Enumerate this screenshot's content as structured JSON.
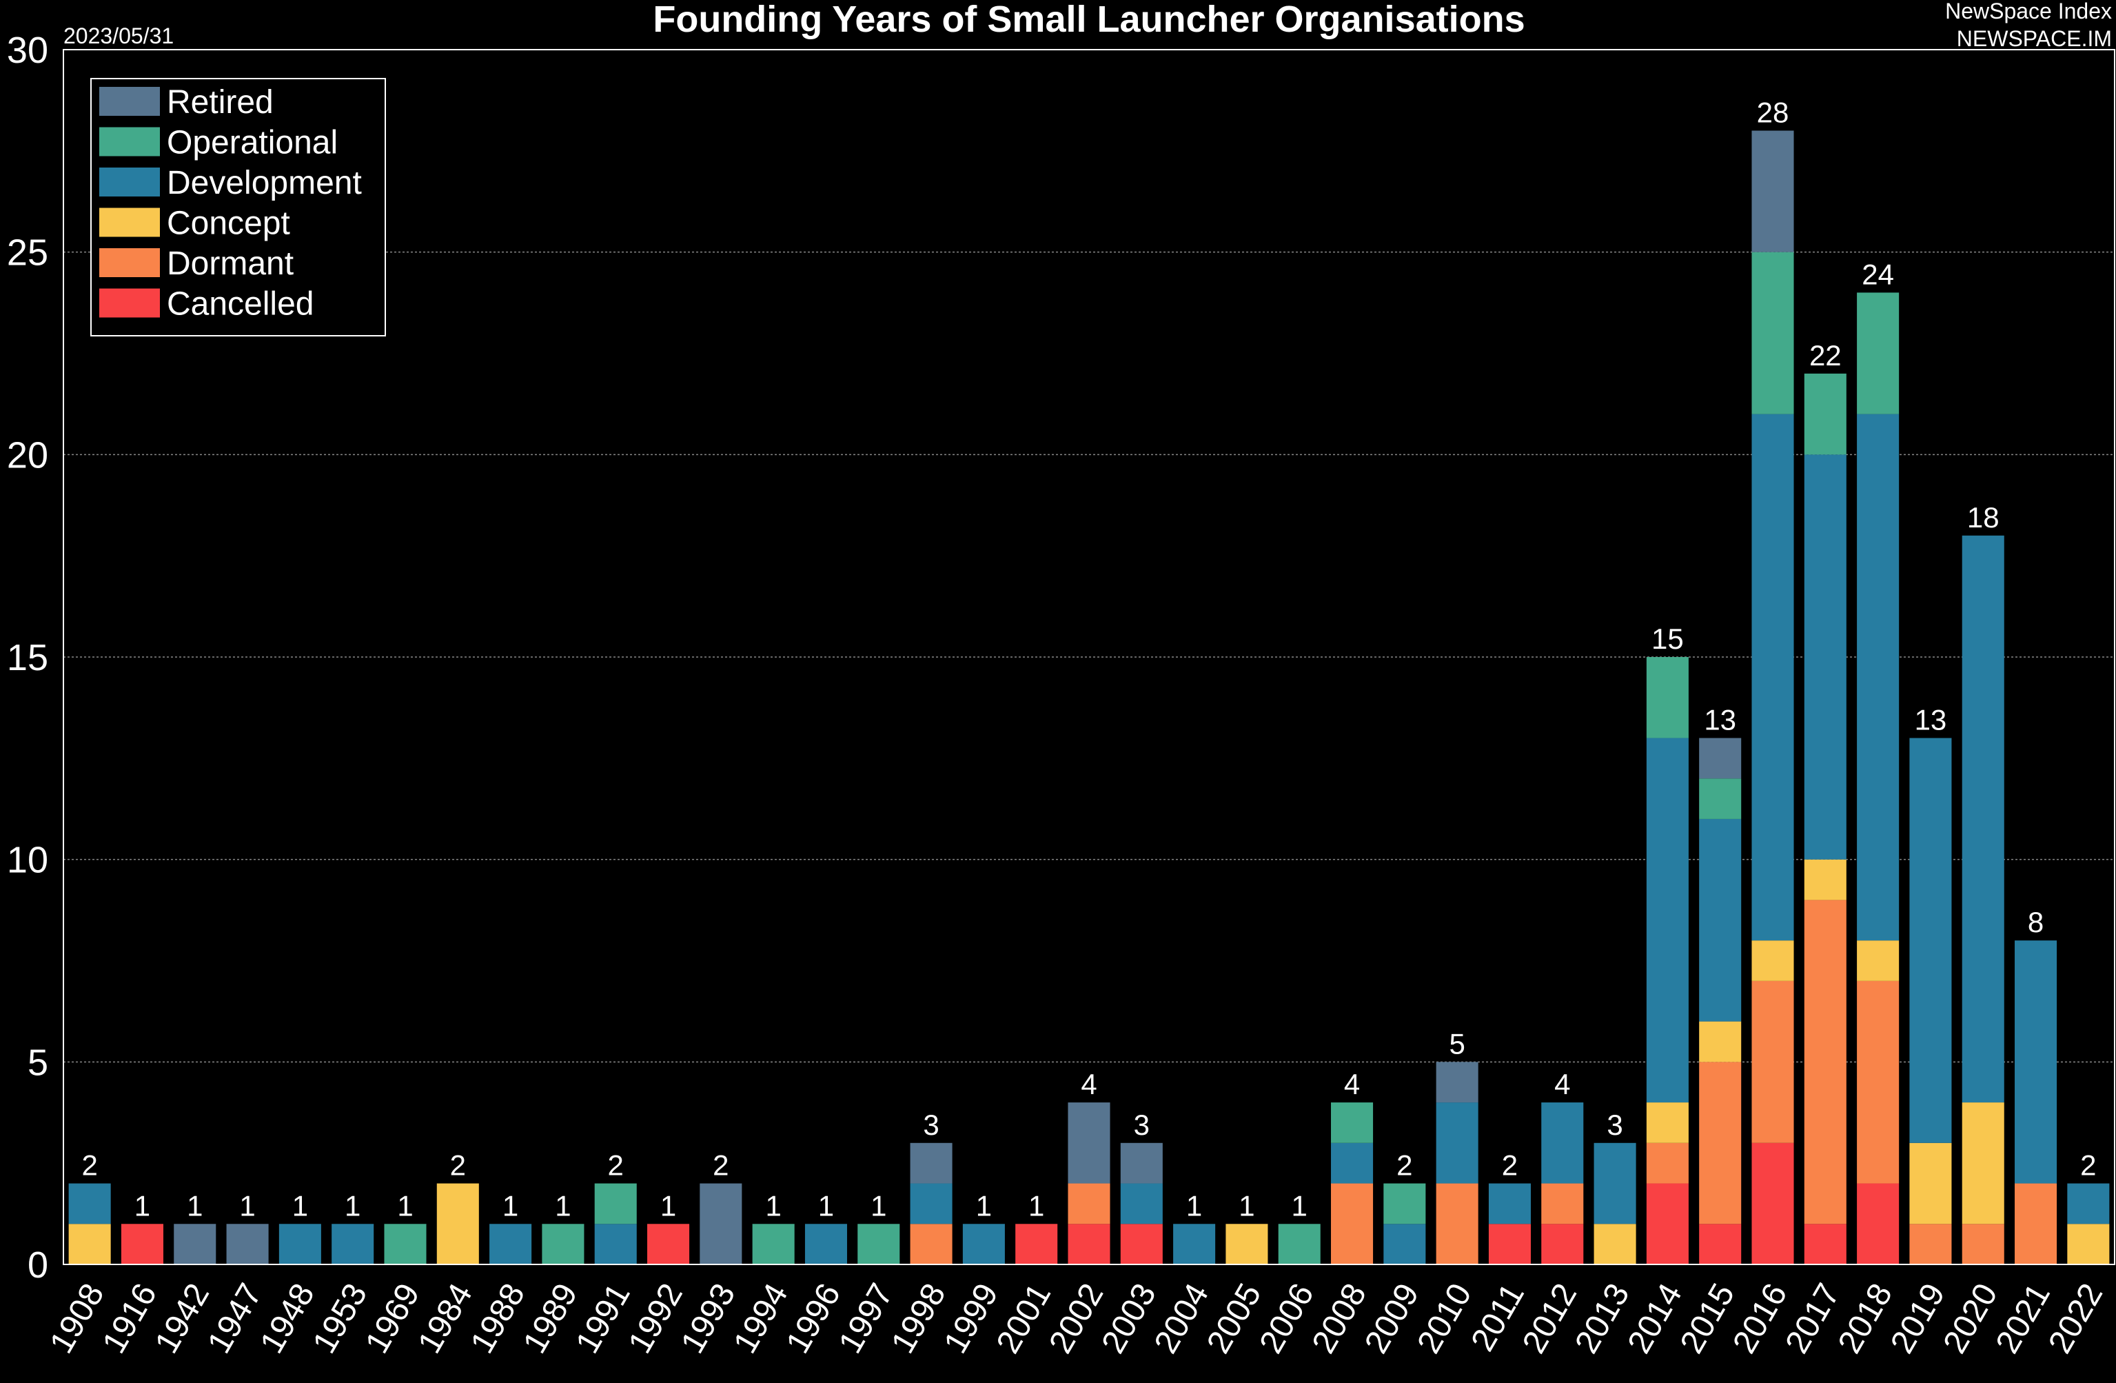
{
  "header": {
    "date": "2023/05/31",
    "brand_line1": "NewSpace Index",
    "brand_line2": "NEWSPACE.IM"
  },
  "chart_data": {
    "type": "bar",
    "stacked": true,
    "title": "Founding Years of Small Launcher Organisations",
    "xlabel": "",
    "ylabel": "",
    "ylim": [
      0,
      30
    ],
    "yticks": [
      0,
      5,
      10,
      15,
      20,
      25,
      30
    ],
    "grid": true,
    "legend_position": "top-left",
    "categories": [
      "1908",
      "1916",
      "1942",
      "1947",
      "1948",
      "1953",
      "1969",
      "1984",
      "1988",
      "1989",
      "1991",
      "1992",
      "1993",
      "1994",
      "1996",
      "1997",
      "1998",
      "1999",
      "2001",
      "2002",
      "2003",
      "2004",
      "2005",
      "2006",
      "2008",
      "2009",
      "2010",
      "2011",
      "2012",
      "2013",
      "2014",
      "2015",
      "2016",
      "2017",
      "2018",
      "2019",
      "2020",
      "2021",
      "2022"
    ],
    "series": [
      {
        "name": "Cancelled",
        "color": "#f94144",
        "values": [
          0,
          1,
          0,
          0,
          0,
          0,
          0,
          0,
          0,
          0,
          0,
          1,
          0,
          0,
          0,
          0,
          0,
          0,
          1,
          1,
          1,
          0,
          0,
          0,
          0,
          0,
          0,
          1,
          1,
          0,
          2,
          1,
          3,
          1,
          2,
          0,
          0,
          0,
          0
        ]
      },
      {
        "name": "Dormant",
        "color": "#f9844a",
        "values": [
          0,
          0,
          0,
          0,
          0,
          0,
          0,
          0,
          0,
          0,
          0,
          0,
          0,
          0,
          0,
          0,
          1,
          0,
          0,
          1,
          0,
          0,
          0,
          0,
          2,
          0,
          2,
          0,
          1,
          0,
          1,
          4,
          4,
          8,
          5,
          1,
          1,
          2,
          0
        ]
      },
      {
        "name": "Concept",
        "color": "#f9c74f",
        "values": [
          1,
          0,
          0,
          0,
          0,
          0,
          0,
          2,
          0,
          0,
          0,
          0,
          0,
          0,
          0,
          0,
          0,
          0,
          0,
          0,
          0,
          0,
          1,
          0,
          0,
          0,
          0,
          0,
          0,
          1,
          1,
          1,
          1,
          1,
          1,
          2,
          3,
          0,
          1
        ]
      },
      {
        "name": "Development",
        "color": "#277da1",
        "values": [
          1,
          0,
          0,
          0,
          1,
          1,
          0,
          0,
          1,
          0,
          1,
          0,
          0,
          0,
          1,
          0,
          1,
          1,
          0,
          0,
          1,
          1,
          0,
          0,
          1,
          1,
          2,
          1,
          2,
          2,
          9,
          5,
          13,
          10,
          13,
          10,
          14,
          6,
          1
        ]
      },
      {
        "name": "Operational",
        "color": "#43aa8b",
        "values": [
          0,
          0,
          0,
          0,
          0,
          0,
          1,
          0,
          0,
          1,
          1,
          0,
          0,
          1,
          0,
          1,
          0,
          0,
          0,
          0,
          0,
          0,
          0,
          1,
          1,
          1,
          0,
          0,
          0,
          0,
          2,
          1,
          4,
          2,
          3,
          0,
          0,
          0,
          0
        ]
      },
      {
        "name": "Retired",
        "color": "#577590",
        "values": [
          0,
          0,
          1,
          1,
          0,
          0,
          0,
          0,
          0,
          0,
          0,
          0,
          2,
          0,
          0,
          0,
          1,
          0,
          0,
          2,
          1,
          0,
          0,
          0,
          0,
          0,
          1,
          0,
          0,
          0,
          0,
          1,
          3,
          0,
          0,
          0,
          0,
          0,
          0
        ]
      }
    ],
    "totals": [
      2,
      1,
      1,
      1,
      1,
      1,
      1,
      2,
      1,
      1,
      2,
      1,
      2,
      1,
      1,
      1,
      3,
      1,
      1,
      4,
      3,
      1,
      1,
      1,
      4,
      2,
      5,
      2,
      4,
      3,
      15,
      13,
      28,
      22,
      24,
      13,
      18,
      8,
      2
    ],
    "legend_order": [
      "Retired",
      "Operational",
      "Development",
      "Concept",
      "Dormant",
      "Cancelled"
    ]
  }
}
